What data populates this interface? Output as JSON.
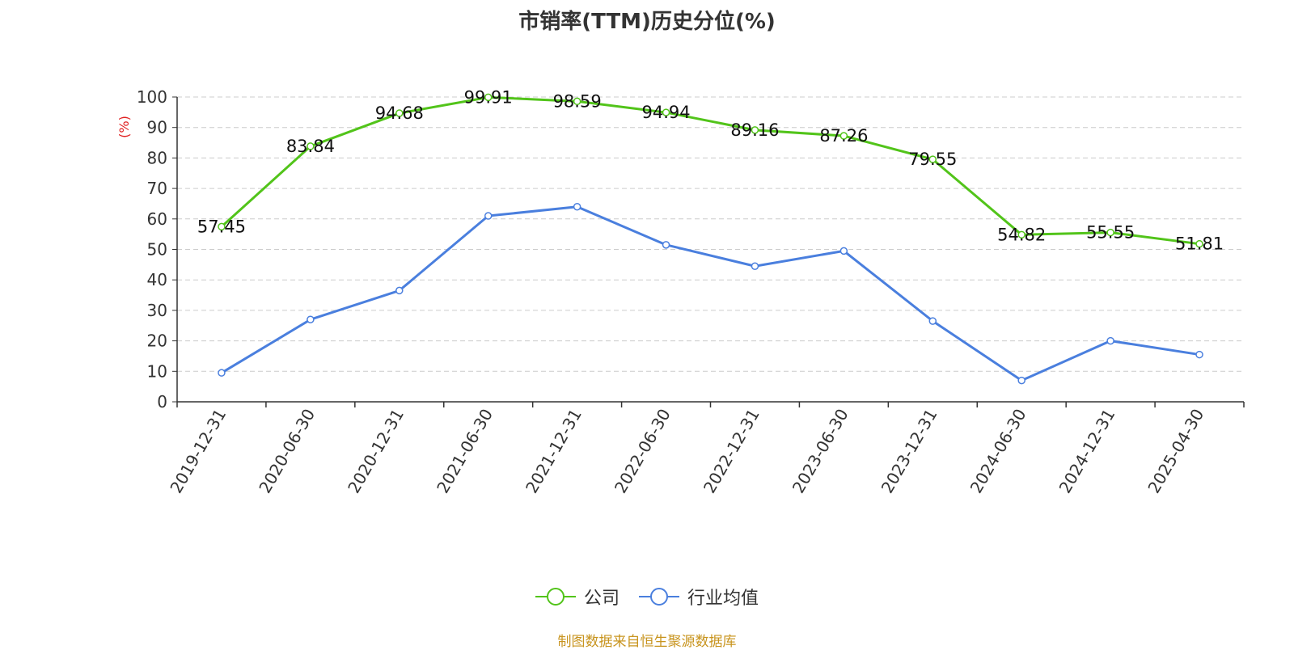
{
  "chart_data": {
    "type": "line",
    "title": "市销率(TTM)历史分位(%)",
    "ylabel": "(%)",
    "ylim": [
      0,
      100
    ],
    "yticks": [
      0,
      10,
      20,
      30,
      40,
      50,
      60,
      70,
      80,
      90,
      100
    ],
    "categories": [
      "2019-12-31",
      "2020-06-30",
      "2020-12-31",
      "2021-06-30",
      "2021-12-31",
      "2022-06-30",
      "2022-12-31",
      "2023-06-30",
      "2023-12-31",
      "2024-06-30",
      "2024-12-31",
      "2025-04-30"
    ],
    "grid": true,
    "legend_position": "bottom",
    "series": [
      {
        "name": "公司",
        "color": "#52c41a",
        "show_labels": true,
        "values": [
          57.45,
          83.84,
          94.68,
          99.91,
          98.59,
          94.94,
          89.16,
          87.26,
          79.55,
          54.82,
          55.55,
          51.81
        ]
      },
      {
        "name": "行业均值",
        "color": "#4a7fde",
        "show_labels": false,
        "values": [
          9.5,
          27,
          36.5,
          61,
          64,
          51.5,
          44.5,
          49.5,
          26.5,
          7,
          20,
          15.5
        ]
      }
    ]
  },
  "source": "制图数据来自恒生聚源数据库"
}
